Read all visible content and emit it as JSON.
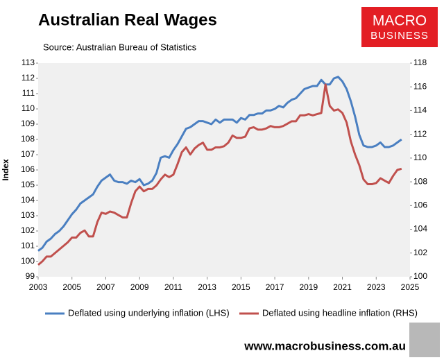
{
  "chart_data": {
    "type": "line",
    "title": "Australian Real Wages",
    "subtitle": "Source: Australian Bureau of Statistics",
    "ylabel": "Index",
    "logo": [
      "MACRO",
      "BUSINESS"
    ],
    "footer": "www.macrobusiness.com.au",
    "x": [
      2003,
      2003.25,
      2003.5,
      2003.75,
      2004,
      2004.25,
      2004.5,
      2004.75,
      2005,
      2005.25,
      2005.5,
      2005.75,
      2006,
      2006.25,
      2006.5,
      2006.75,
      2007,
      2007.25,
      2007.5,
      2007.75,
      2008,
      2008.25,
      2008.5,
      2008.75,
      2009,
      2009.25,
      2009.5,
      2009.75,
      2010,
      2010.25,
      2010.5,
      2010.75,
      2011,
      2011.25,
      2011.5,
      2011.75,
      2012,
      2012.25,
      2012.5,
      2012.75,
      2013,
      2013.25,
      2013.5,
      2013.75,
      2014,
      2014.25,
      2014.5,
      2014.75,
      2015,
      2015.25,
      2015.5,
      2015.75,
      2016,
      2016.25,
      2016.5,
      2016.75,
      2017,
      2017.25,
      2017.5,
      2017.75,
      2018,
      2018.25,
      2018.5,
      2018.75,
      2019,
      2019.25,
      2019.5,
      2019.75,
      2020,
      2020.25,
      2020.5,
      2020.75,
      2021,
      2021.25,
      2021.5,
      2021.75,
      2022,
      2022.25,
      2022.5,
      2022.75,
      2023,
      2023.25,
      2023.5,
      2023.75,
      2024,
      2024.25,
      2024.5
    ],
    "series": [
      {
        "name": "Deflated using underlying inflation (LHS)",
        "color": "#4a7fc1",
        "axis": "y",
        "values": [
          100.7,
          100.9,
          101.3,
          101.5,
          101.8,
          102.0,
          102.3,
          102.7,
          103.1,
          103.4,
          103.8,
          104.0,
          104.2,
          104.4,
          104.9,
          105.3,
          105.5,
          105.7,
          105.3,
          105.2,
          105.2,
          105.1,
          105.3,
          105.2,
          105.4,
          105.0,
          105.1,
          105.3,
          105.8,
          106.8,
          106.9,
          106.8,
          107.3,
          107.7,
          108.2,
          108.7,
          108.8,
          109.0,
          109.2,
          109.2,
          109.1,
          109.0,
          109.3,
          109.1,
          109.3,
          109.3,
          109.3,
          109.1,
          109.4,
          109.3,
          109.6,
          109.6,
          109.7,
          109.7,
          109.9,
          109.9,
          110.0,
          110.2,
          110.1,
          110.4,
          110.6,
          110.7,
          111.0,
          111.3,
          111.4,
          111.5,
          111.5,
          111.9,
          111.6,
          111.6,
          112.0,
          112.1,
          111.8,
          111.3,
          110.5,
          109.5,
          108.3,
          107.6,
          107.5,
          107.5,
          107.6,
          107.8,
          107.5,
          107.5,
          107.6,
          107.8,
          108.0
        ]
      },
      {
        "name": "Deflated using headline inflation (RHS)",
        "color": "#c0504d",
        "axis": "y2",
        "values": [
          101.0,
          101.3,
          101.7,
          101.7,
          102.0,
          102.3,
          102.6,
          102.9,
          103.3,
          103.3,
          103.7,
          103.9,
          103.4,
          103.4,
          104.6,
          105.4,
          105.3,
          105.5,
          105.4,
          105.2,
          105.0,
          105.0,
          106.2,
          107.2,
          107.6,
          107.2,
          107.4,
          107.4,
          107.7,
          108.2,
          108.6,
          108.4,
          108.6,
          109.5,
          110.5,
          110.9,
          110.3,
          110.8,
          111.1,
          111.3,
          110.7,
          110.7,
          110.9,
          110.9,
          111.0,
          111.3,
          111.9,
          111.7,
          111.7,
          111.8,
          112.5,
          112.6,
          112.4,
          112.4,
          112.5,
          112.7,
          112.6,
          112.6,
          112.7,
          112.9,
          113.1,
          113.1,
          113.6,
          113.6,
          113.7,
          113.6,
          113.7,
          113.8,
          116.2,
          114.4,
          114.0,
          114.1,
          113.8,
          113.0,
          111.4,
          110.3,
          109.4,
          108.2,
          107.8,
          107.8,
          107.9,
          108.3,
          108.1,
          107.9,
          108.5,
          109.0,
          109.1
        ]
      }
    ],
    "xlim": [
      2003,
      2025
    ],
    "xticks": [
      2003,
      2005,
      2007,
      2009,
      2011,
      2013,
      2015,
      2017,
      2019,
      2021,
      2023,
      2025
    ],
    "ylim": [
      99,
      113
    ],
    "yticks": [
      99,
      100,
      101,
      102,
      103,
      104,
      105,
      106,
      107,
      108,
      109,
      110,
      111,
      112,
      113
    ],
    "y2lim": [
      100,
      118
    ],
    "y2ticks": [
      100,
      102,
      104,
      106,
      108,
      110,
      112,
      114,
      116,
      118
    ],
    "grid": false,
    "legend": "bottom"
  }
}
